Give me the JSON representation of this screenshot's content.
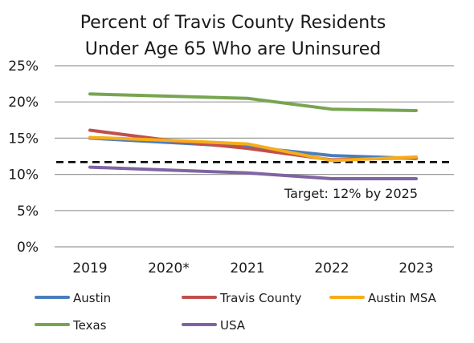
{
  "chart_data": {
    "type": "line",
    "title_lines": [
      "Percent of Travis County Residents",
      "Under Age 65 Who are Uninsured"
    ],
    "categories": [
      "2019",
      "2020*",
      "2021",
      "2022",
      "2023"
    ],
    "ylim": [
      0,
      25
    ],
    "y_ticks": [
      0,
      5,
      10,
      15,
      20,
      25
    ],
    "y_tick_labels": [
      "0%",
      "5%",
      "10%",
      "15%",
      "20%",
      "25%"
    ],
    "grid": true,
    "series": [
      {
        "name": "Austin",
        "color": "#4a7ebb",
        "values": [
          15.0,
          14.4,
          13.8,
          12.6,
          12.2
        ]
      },
      {
        "name": "Travis County",
        "color": "#c0504d",
        "values": [
          16.1,
          14.7,
          13.6,
          12.0,
          12.3
        ]
      },
      {
        "name": "Austin MSA",
        "color": "#f6ad1b",
        "values": [
          15.1,
          14.7,
          14.2,
          11.9,
          12.4
        ]
      },
      {
        "name": "Texas",
        "color": "#77a552",
        "values": [
          21.1,
          20.8,
          20.5,
          19.0,
          18.8
        ]
      },
      {
        "name": "USA",
        "color": "#8064a2",
        "values": [
          11.0,
          10.6,
          10.2,
          9.4,
          9.4
        ]
      }
    ],
    "target": {
      "value": 11.7,
      "label": "Target: 12% by 2025",
      "style": "dashed",
      "color": "#000000"
    },
    "legend_position": "bottom"
  }
}
